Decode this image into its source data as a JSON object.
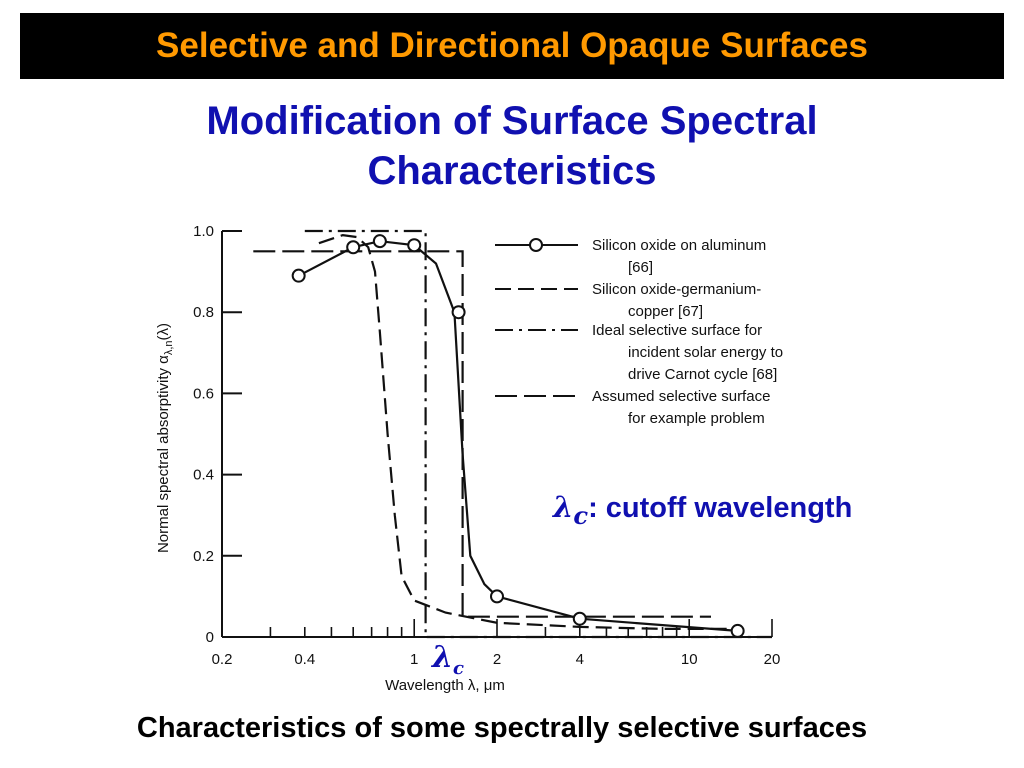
{
  "slide": {
    "title": "Selective and Directional Opaque Surfaces",
    "subtitle_line1": "Modification of Surface Spectral",
    "subtitle_line2": "Characteristics",
    "caption": "Characteristics of some spectrally selective surfaces",
    "cutoff_symbol": "λ",
    "cutoff_sub": "c",
    "cutoff_text": ": cutoff wavelength",
    "axis_marker_symbol": "λ",
    "axis_marker_sub": "c"
  },
  "colors": {
    "title_bg": "#000000",
    "title_text": "#ff9900",
    "blue_text": "#1010b0",
    "plot_ink": "#111111"
  },
  "chart_data": {
    "type": "line",
    "xlabel": "Wavelength λ, μm",
    "ylabel": "Normal spectral absorptivity α",
    "ylabel_sub": "λ,n",
    "ylabel_suffix": "(λ)",
    "x_scale": "log",
    "xlim": [
      0.2,
      20
    ],
    "ylim": [
      0,
      1.0
    ],
    "x_ticks": [
      0.2,
      0.4,
      1,
      2,
      4,
      10,
      20
    ],
    "x_tick_labels": [
      "0.2",
      "0.4",
      "1",
      "2",
      "4",
      "10",
      "20"
    ],
    "y_ticks": [
      0,
      0.2,
      0.4,
      0.6,
      0.8,
      1.0
    ],
    "y_tick_labels": [
      "0",
      "0.2",
      "0.4",
      "0.6",
      "0.8",
      "1.0"
    ],
    "cutoff_wavelength": 1.1,
    "series": [
      {
        "name_lines": [
          "Silicon oxide on aluminum",
          "[66]"
        ],
        "style": "solid-circles",
        "points": [
          [
            0.38,
            0.89
          ],
          [
            0.6,
            0.96
          ],
          [
            0.75,
            0.975
          ],
          [
            1.0,
            0.965
          ],
          [
            1.2,
            0.92
          ],
          [
            1.4,
            0.8
          ],
          [
            1.5,
            0.45
          ],
          [
            1.6,
            0.2
          ],
          [
            1.8,
            0.13
          ],
          [
            2.0,
            0.1
          ],
          [
            4.0,
            0.045
          ],
          [
            15,
            0.015
          ]
        ],
        "markers": [
          [
            0.38,
            0.89
          ],
          [
            0.6,
            0.96
          ],
          [
            0.75,
            0.975
          ],
          [
            1.0,
            0.965
          ],
          [
            1.45,
            0.8
          ],
          [
            2.0,
            0.1
          ],
          [
            4.0,
            0.045
          ],
          [
            15,
            0.015
          ]
        ]
      },
      {
        "name_lines": [
          "Silicon oxide-germanium-",
          "copper [67]"
        ],
        "style": "long-dash",
        "points": [
          [
            0.45,
            0.97
          ],
          [
            0.55,
            0.99
          ],
          [
            0.62,
            0.985
          ],
          [
            0.68,
            0.96
          ],
          [
            0.72,
            0.9
          ],
          [
            0.75,
            0.75
          ],
          [
            0.8,
            0.5
          ],
          [
            0.85,
            0.3
          ],
          [
            0.9,
            0.15
          ],
          [
            1.0,
            0.09
          ],
          [
            1.3,
            0.06
          ],
          [
            2.0,
            0.035
          ],
          [
            4,
            0.025
          ],
          [
            8,
            0.02
          ],
          [
            15,
            0.02
          ]
        ]
      },
      {
        "name_lines": [
          "Ideal selective surface for",
          "incident solar energy to",
          "drive Carnot cycle [68]"
        ],
        "style": "dash-dot",
        "points": [
          [
            0.4,
            1.0
          ],
          [
            1.1,
            1.0
          ],
          [
            1.1,
            0
          ],
          [
            20,
            0
          ]
        ]
      },
      {
        "name_lines": [
          "Assumed selective surface",
          "for example problem"
        ],
        "style": "dash",
        "points": [
          [
            0.26,
            0.95
          ],
          [
            1.5,
            0.95
          ],
          [
            1.5,
            0.05
          ],
          [
            12,
            0.05
          ]
        ]
      }
    ]
  }
}
